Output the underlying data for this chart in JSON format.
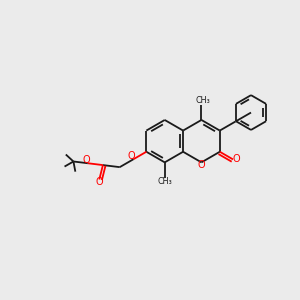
{
  "bg_color": "#ebebeb",
  "bond_color": "#1a1a1a",
  "oxygen_color": "#ff0000",
  "lw": 1.3,
  "figsize": [
    3.0,
    3.0
  ],
  "dpi": 100,
  "xlim": [
    0,
    10
  ],
  "ylim": [
    0,
    10
  ]
}
